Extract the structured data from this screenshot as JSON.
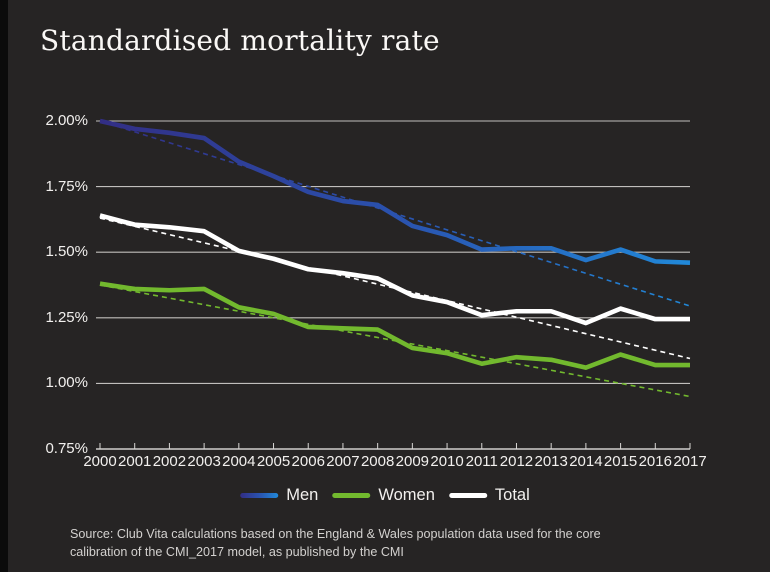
{
  "page": {
    "title": "Standardised mortality rate",
    "source": {
      "line1": "Source: Club Vita calculations based on the England & Wales population data used for the core",
      "line2": "calibration of the CMI_2017 model, as published by the CMI"
    }
  },
  "colors": {
    "background": "#262424",
    "edge_bar": "#0b0b0b",
    "grid": "#c9c7c5",
    "axis": "#d9d7d5",
    "men_gradient": [
      "#322e85",
      "#2a52ae",
      "#2189d9"
    ],
    "women": "#72b92e",
    "total": "#ffffff",
    "title_text": "#faf8f6",
    "label_text": "#f2f0ee",
    "source_text": "#d3d1cf"
  },
  "legend": {
    "items": [
      {
        "label": "Men",
        "color": "men"
      },
      {
        "label": "Women",
        "color": "women"
      },
      {
        "label": "Total",
        "color": "total"
      }
    ]
  },
  "chart_data": {
    "type": "line",
    "title": "Standardised mortality rate",
    "x": [
      2000,
      2001,
      2002,
      2003,
      2004,
      2005,
      2006,
      2007,
      2008,
      2009,
      2010,
      2011,
      2012,
      2013,
      2014,
      2015,
      2016,
      2017
    ],
    "xlabel": "",
    "ylabel": "",
    "ylim": [
      0.75,
      2.0
    ],
    "grid": "horizontal",
    "legend_position": "bottom",
    "y_ticks": [
      {
        "value": 2.0,
        "label": "2.00%"
      },
      {
        "value": 1.75,
        "label": "1.75%"
      },
      {
        "value": 1.5,
        "label": "1.50%"
      },
      {
        "value": 1.25,
        "label": "1.25%"
      },
      {
        "value": 1.0,
        "label": "1.00%"
      },
      {
        "value": 0.75,
        "label": "0.75%"
      }
    ],
    "series": [
      {
        "name": "Men",
        "color": "men",
        "style": "solid",
        "values": [
          2.0,
          1.97,
          1.955,
          1.935,
          1.845,
          1.79,
          1.73,
          1.695,
          1.68,
          1.6,
          1.565,
          1.51,
          1.515,
          1.515,
          1.47,
          1.51,
          1.465,
          1.46
        ]
      },
      {
        "name": "Women",
        "color": "women",
        "style": "solid",
        "values": [
          1.38,
          1.36,
          1.355,
          1.36,
          1.29,
          1.265,
          1.215,
          1.21,
          1.205,
          1.135,
          1.115,
          1.075,
          1.1,
          1.09,
          1.06,
          1.11,
          1.07,
          1.07
        ]
      },
      {
        "name": "Total",
        "color": "total",
        "style": "solid",
        "values": [
          1.64,
          1.605,
          1.595,
          1.58,
          1.505,
          1.475,
          1.435,
          1.42,
          1.4,
          1.335,
          1.31,
          1.26,
          1.275,
          1.275,
          1.23,
          1.285,
          1.245,
          1.245
        ]
      }
    ],
    "trend_lines": [
      {
        "name": "Men trend",
        "color": "men",
        "style": "dashed",
        "start": 2.0,
        "end": 1.295
      },
      {
        "name": "Total trend",
        "color": "total",
        "style": "dashed",
        "start": 1.63,
        "end": 1.095
      },
      {
        "name": "Women trend",
        "color": "women",
        "style": "dashed",
        "start": 1.375,
        "end": 0.95
      }
    ]
  }
}
